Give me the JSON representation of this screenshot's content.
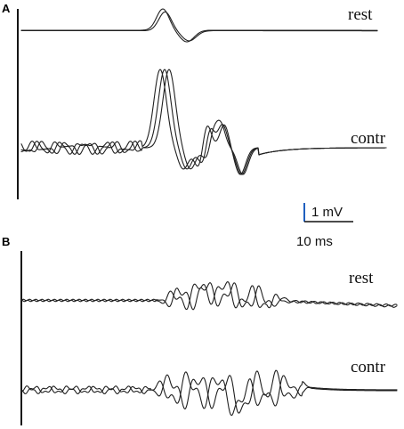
{
  "figure": {
    "panels": [
      {
        "id": "A",
        "label": "A",
        "traces": [
          {
            "label": "rest"
          },
          {
            "label": "contr"
          }
        ]
      },
      {
        "id": "B",
        "label": "B",
        "traces": [
          {
            "label": "rest"
          },
          {
            "label": "contr"
          }
        ]
      }
    ],
    "scale_bar": {
      "voltage_label": "1 mV",
      "time_label": "10 ms",
      "vertical_color": "#1f5fbf"
    }
  },
  "chart_data": {
    "type": "line",
    "title": "",
    "xlabel": "",
    "ylabel": "",
    "panels": [
      {
        "panel": "A",
        "conditions": [
          {
            "condition": "rest",
            "overlaid_sweeps": 2
          },
          {
            "condition": "contr",
            "overlaid_sweeps": 3
          }
        ]
      },
      {
        "panel": "B",
        "conditions": [
          {
            "condition": "rest",
            "overlaid_sweeps": 2
          },
          {
            "condition": "contr",
            "overlaid_sweeps": 2
          }
        ]
      }
    ],
    "scale_bar": {
      "voltage": 1,
      "voltage_unit": "mV",
      "time": 10,
      "time_unit": "ms"
    },
    "trace_color": "#202020",
    "grid": false
  }
}
